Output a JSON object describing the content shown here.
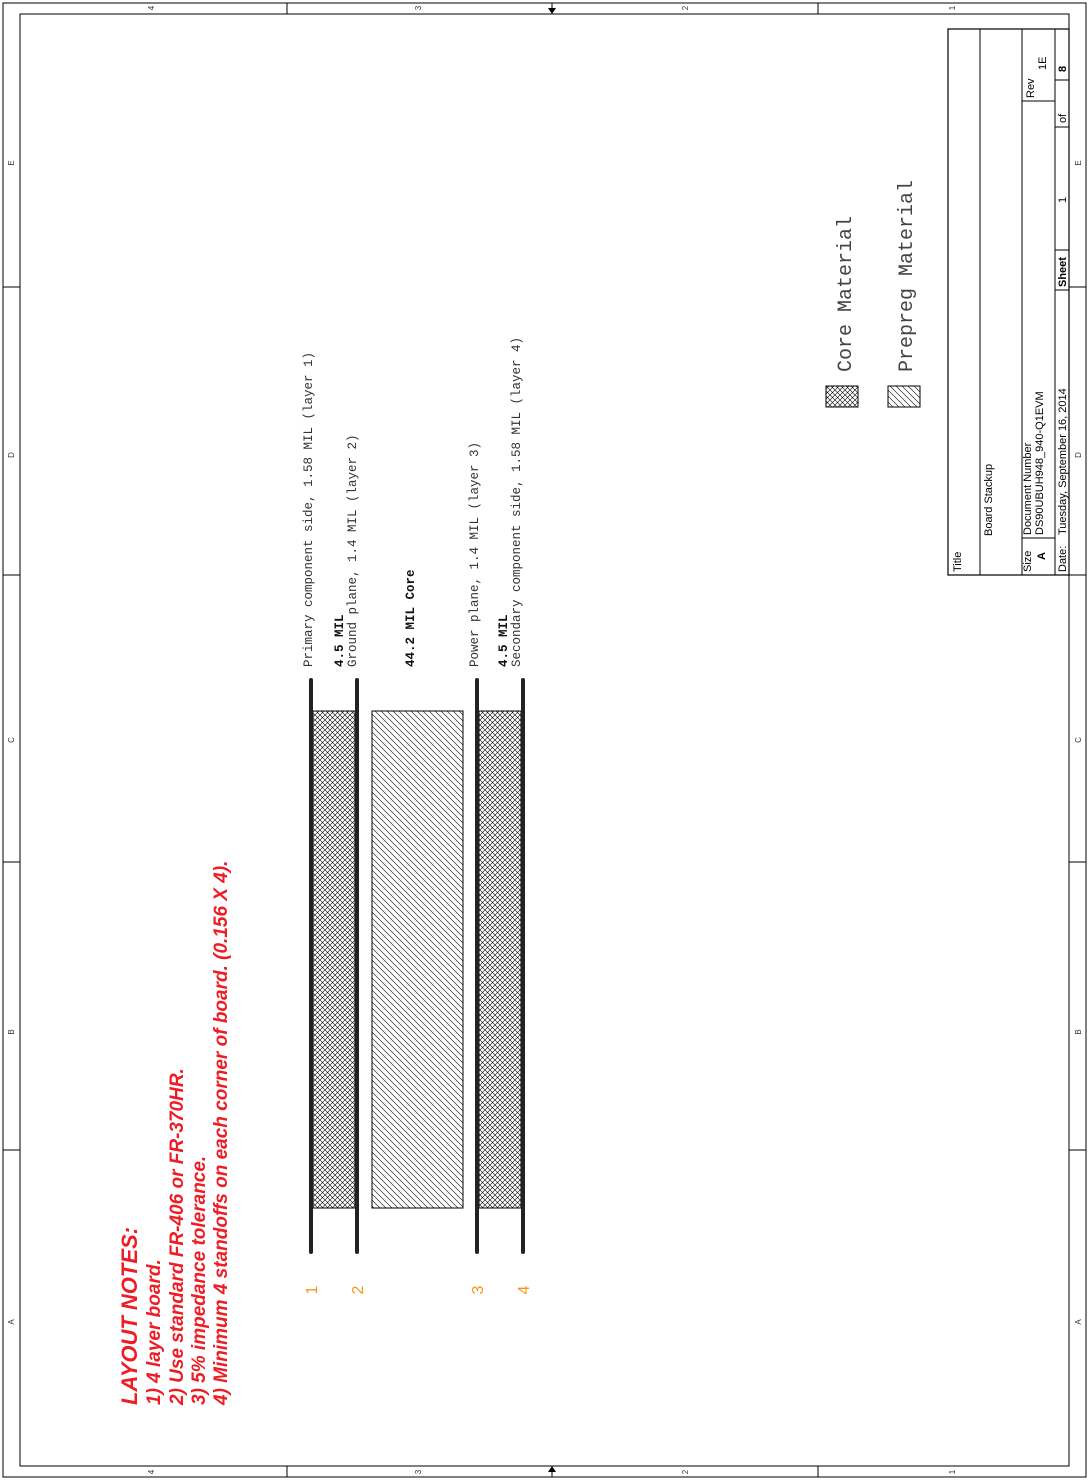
{
  "layout_notes": {
    "heading": "LAYOUT NOTES:",
    "items": [
      "1) 4 layer board.",
      "2) Use standard FR-406 or FR-370HR.",
      "3) 5% impedance tolerance.",
      "4) Minimum 4 standoffs on each corner of board.  (0.156 X 4)."
    ]
  },
  "stackup": {
    "layer_numbers": [
      "1",
      "2",
      "3",
      "4"
    ],
    "labels": {
      "layer1": "Primary component side, 1.58 MIL (layer 1)",
      "prepreg_top": "4.5 MIL",
      "layer2": "Ground plane, 1.4 MIL (layer 2)",
      "core": "44.2 MIL Core",
      "layer3": "Power plane, 1.4 MIL (layer 3)",
      "prepreg_bottom": "4.5 MIL",
      "layer4": "Secondary component side, 1.58 MIL (layer 4)"
    }
  },
  "legend": {
    "core": "Core Material",
    "prepreg": "Prepreg Material"
  },
  "title_block": {
    "title_label": "Title",
    "title": "Board Stackup",
    "size_label": "Size",
    "size": "A",
    "docnum_label": "Document Number",
    "docnum": "DS90UBUH948_940-Q1EVM",
    "rev_label": "Rev",
    "rev": "1E",
    "date_label": "Date:",
    "date": "Tuesday, September 16, 2014",
    "sheet_label": "Sheet",
    "sheet": "1",
    "of_label": "of",
    "sheet_total": "8"
  },
  "border_zones": {
    "numbers": [
      "4",
      "3",
      "2",
      "1"
    ],
    "letters": [
      "E",
      "D",
      "C",
      "B",
      "A"
    ]
  }
}
